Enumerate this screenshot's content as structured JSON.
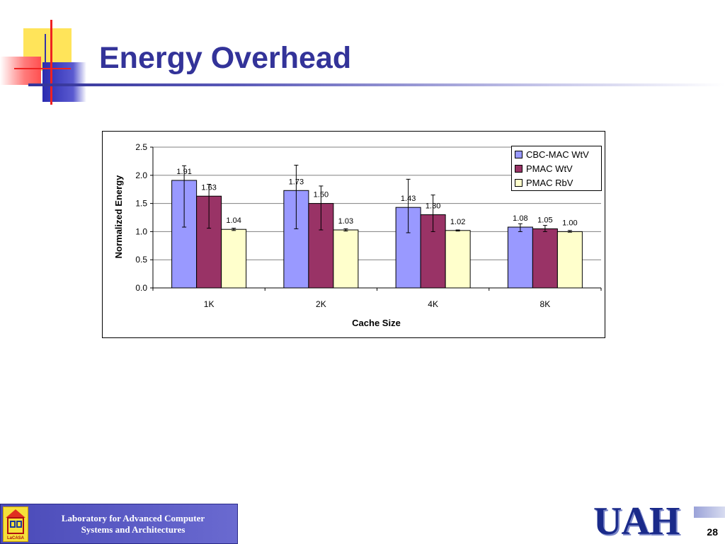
{
  "slide": {
    "title": "Energy Overhead",
    "footer_line1": "Laboratory for Advanced Computer",
    "footer_line2": "Systems and Architectures",
    "logo_text": "LaCASA",
    "uah_logo": "UAH",
    "page_number": "28"
  },
  "colors": {
    "title": "#333399",
    "cbc_mac_wtv": "#9999ff",
    "pmac_wtv": "#993366",
    "pmac_rbv": "#ffffcc"
  },
  "chart_data": {
    "type": "bar",
    "title": "",
    "xlabel": "Cache Size",
    "ylabel": "Normalized Energy",
    "ylim": [
      0,
      2.5
    ],
    "yticks": [
      "0.0",
      "0.5",
      "1.0",
      "1.5",
      "2.0",
      "2.5"
    ],
    "grid": true,
    "legend_position": "top-right",
    "categories": [
      "1K",
      "2K",
      "4K",
      "8K"
    ],
    "series": [
      {
        "name": "CBC-MAC WtV",
        "color": "#9999ff",
        "values": [
          1.91,
          1.73,
          1.43,
          1.08
        ],
        "labels": [
          "1.91",
          "1.73",
          "1.43",
          "1.08"
        ],
        "error_low": [
          1.08,
          1.05,
          0.98,
          1.0
        ],
        "error_high": [
          2.17,
          2.18,
          1.93,
          1.14
        ]
      },
      {
        "name": "PMAC WtV",
        "color": "#993366",
        "values": [
          1.63,
          1.5,
          1.3,
          1.05
        ],
        "labels": [
          "1.63",
          "1.50",
          "1.30",
          "1.05"
        ],
        "error_low": [
          1.06,
          1.03,
          1.0,
          1.0
        ],
        "error_high": [
          1.84,
          1.81,
          1.65,
          1.11
        ]
      },
      {
        "name": "PMAC RbV",
        "color": "#ffffcc",
        "values": [
          1.04,
          1.03,
          1.02,
          1.0
        ],
        "labels": [
          "1.04",
          "1.03",
          "1.02",
          "1.00"
        ],
        "error_low": [
          1.02,
          1.01,
          1.01,
          0.99
        ],
        "error_high": [
          1.06,
          1.05,
          1.03,
          1.02
        ]
      }
    ]
  }
}
